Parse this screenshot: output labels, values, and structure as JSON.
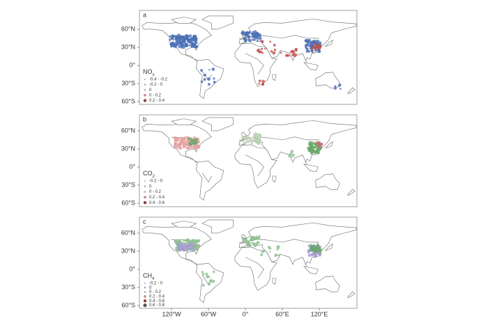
{
  "lat_ticks": [
    "60°N",
    "30°N",
    "0°",
    "30°S",
    "60°S"
  ],
  "lon_ticks": [
    "120°W",
    "60°W",
    "0°",
    "60°E",
    "120°E"
  ],
  "panels": [
    {
      "label": "a",
      "legend_title": "NO",
      "legend_sub": "x",
      "legend_items": [
        "-0.4 - -0.2",
        "-0.2 - 0",
        "0",
        "0 - 0.2",
        "0.2 - 0.4"
      ]
    },
    {
      "label": "b",
      "legend_title": "CO",
      "legend_sub": "2",
      "legend_items": [
        "-0.2 - 0",
        "0",
        "0 - 0.2",
        "0.2 - 0.4",
        "0.4 - 0.6"
      ]
    },
    {
      "label": "c",
      "legend_title": "CH",
      "legend_sub": "4",
      "legend_items": [
        "-0.2 - 0",
        "0",
        "0 - 0.2",
        "0.2 - 0.4",
        "0.4 - 0.6",
        "0.6 - 0.8"
      ]
    }
  ]
}
